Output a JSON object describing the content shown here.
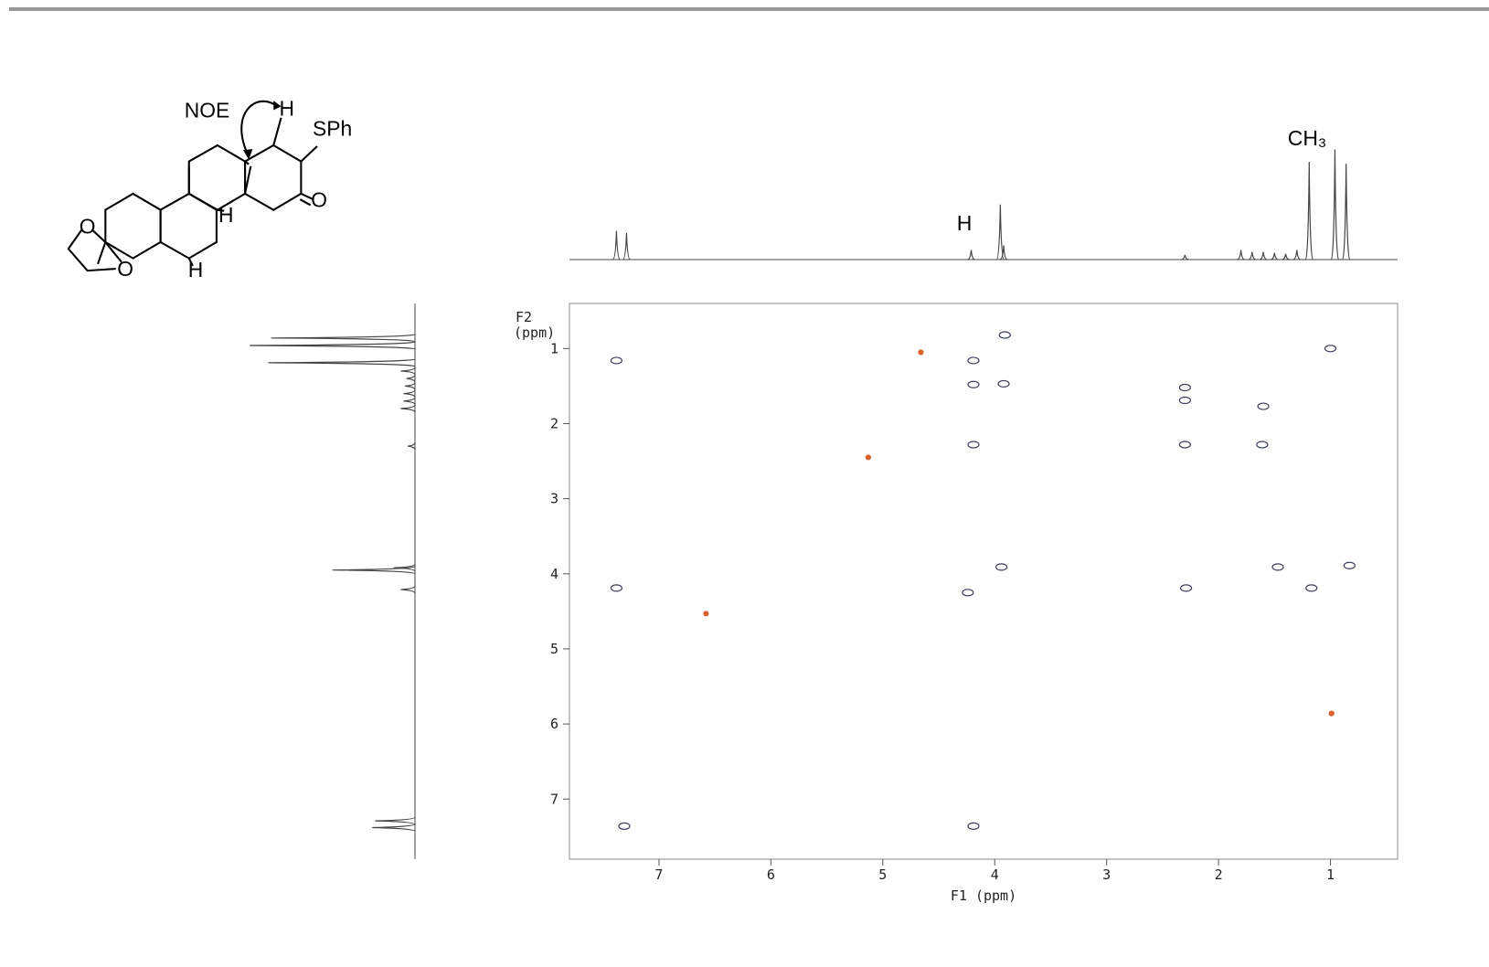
{
  "chart_data": {
    "type": "noesy",
    "x_label": "F1 (ppm)",
    "y_label": [
      "F2",
      "(ppm)"
    ],
    "annotations": [
      "H",
      "CH₃"
    ],
    "xlim": [
      7.8,
      0.4
    ],
    "ylim": [
      0.4,
      7.8
    ],
    "y_inverted": true,
    "xticks": [
      7,
      6,
      5,
      4,
      3,
      2,
      1
    ],
    "yticks": [
      1,
      2,
      3,
      4,
      5,
      6,
      7
    ],
    "projection": {
      "color": "#444444",
      "ppm": [
        7.38,
        7.29,
        4.21,
        3.95,
        3.92,
        2.3,
        1.8,
        1.7,
        1.6,
        1.5,
        1.4,
        1.3,
        1.19,
        0.96,
        0.86
      ],
      "heights": [
        30,
        28,
        10,
        58,
        15,
        5,
        10,
        8,
        8,
        7,
        6,
        10,
        103,
        116,
        101
      ]
    },
    "series": [
      {
        "color": "#3a3f5a",
        "x": [
          4.19,
          4.19,
          4.19,
          4.19,
          3.91,
          3.92,
          7.38,
          7.38,
          2.3,
          2.3,
          2.29,
          1.61,
          1.47,
          1.17,
          0.83,
          7.31,
          3.94,
          4.24,
          1.0,
          1.6,
          2.3
        ],
        "values": [
          1.16,
          1.48,
          2.28,
          7.36,
          0.82,
          1.47,
          4.19,
          1.16,
          1.52,
          1.69,
          4.19,
          2.28,
          3.91,
          4.19,
          3.89,
          7.36,
          3.91,
          4.25,
          1.0,
          1.77,
          2.28
        ]
      },
      {
        "color": "#d9622b",
        "x": [
          4.66,
          5.13,
          6.58,
          0.99
        ],
        "values": [
          1.05,
          2.45,
          4.53,
          5.86
        ]
      }
    ]
  },
  "structure": {
    "labels": [
      "NOE",
      "H",
      "SPh",
      "O",
      "H",
      "H",
      "O",
      "O"
    ]
  }
}
